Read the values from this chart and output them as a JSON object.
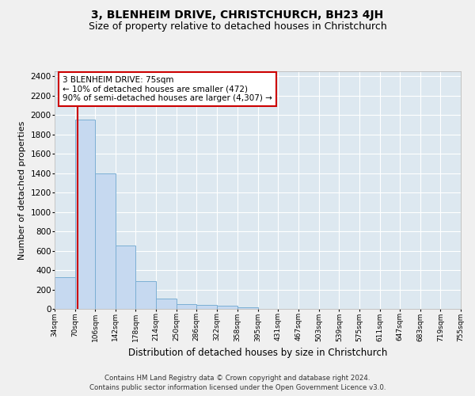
{
  "title": "3, BLENHEIM DRIVE, CHRISTCHURCH, BH23 4JH",
  "subtitle": "Size of property relative to detached houses in Christchurch",
  "xlabel": "Distribution of detached houses by size in Christchurch",
  "ylabel": "Number of detached properties",
  "footnote1": "Contains HM Land Registry data © Crown copyright and database right 2024.",
  "footnote2": "Contains public sector information licensed under the Open Government Licence v3.0.",
  "bar_edges": [
    34,
    70,
    106,
    142,
    178,
    214,
    250,
    286,
    322,
    358,
    395,
    431,
    467,
    503,
    539,
    575,
    611,
    647,
    683,
    719,
    755
  ],
  "bar_values": [
    325,
    1950,
    1400,
    650,
    285,
    110,
    50,
    40,
    30,
    20,
    0,
    0,
    0,
    0,
    0,
    0,
    0,
    0,
    0,
    0
  ],
  "bar_color": "#c6d9f0",
  "bar_edge_color": "#7bafd4",
  "property_size": 75,
  "property_label": "3 BLENHEIM DRIVE: 75sqm",
  "annotation_line1": "← 10% of detached houses are smaller (472)",
  "annotation_line2": "90% of semi-detached houses are larger (4,307) →",
  "vline_color": "#cc0000",
  "annotation_box_edgecolor": "#cc0000",
  "ylim": [
    0,
    2450
  ],
  "yticks": [
    0,
    200,
    400,
    600,
    800,
    1000,
    1200,
    1400,
    1600,
    1800,
    2000,
    2200,
    2400
  ],
  "background_color": "#dde8f0",
  "grid_color": "#ffffff",
  "fig_background": "#f0f0f0",
  "title_fontsize": 10,
  "subtitle_fontsize": 9
}
